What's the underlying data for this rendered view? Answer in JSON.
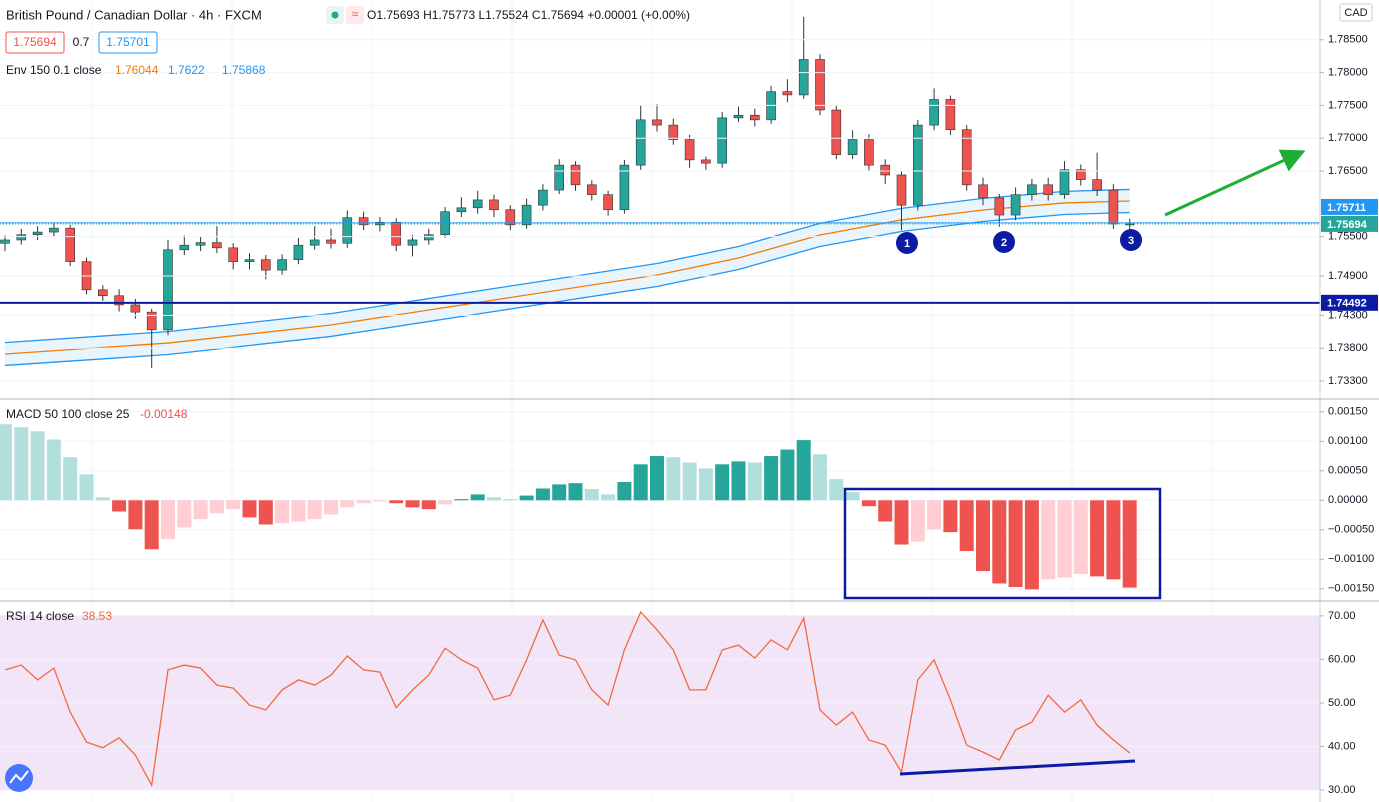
{
  "header": {
    "title": "British Pound / Canadian Dollar · 4h · FXCM",
    "ohlc_prefixes": [
      "O",
      "H",
      "L",
      "C"
    ],
    "change": "+0.00001 (+0.00%)",
    "spread": "0.7",
    "ask": 1.75701,
    "currency": "CAD"
  },
  "chart_data": [
    {
      "type": "candlestick",
      "open": [
        1.754,
        1.7545,
        1.7553,
        1.7557,
        1.7563,
        1.7512,
        1.7469,
        1.746,
        1.7446,
        1.7435,
        1.7408,
        1.753,
        1.7537,
        1.7541,
        1.7533,
        1.7512,
        1.7515,
        1.7499,
        1.7515,
        1.7537,
        1.7545,
        1.754,
        1.7579,
        1.7568,
        1.7572,
        1.7537,
        1.7545,
        1.7553,
        1.7588,
        1.7594,
        1.7606,
        1.7591,
        1.7568,
        1.7598,
        1.7621,
        1.7659,
        1.7629,
        1.7614,
        1.7591,
        1.7659,
        1.7728,
        1.772,
        1.7698,
        1.7667,
        1.7662,
        1.7731,
        1.7735,
        1.7728,
        1.7771,
        1.7766,
        1.782,
        1.7743,
        1.7675,
        1.7698,
        1.7659,
        1.7644,
        1.7598,
        1.772,
        1.7759,
        1.7713,
        1.7629,
        1.7609,
        1.7583,
        1.7614,
        1.7629,
        1.7614,
        1.7652,
        1.7637,
        1.7621,
        1.75693
      ],
      "high": [
        1.7552,
        1.7562,
        1.7566,
        1.7571,
        1.7568,
        1.7518,
        1.7476,
        1.747,
        1.7455,
        1.744,
        1.7545,
        1.7552,
        1.755,
        1.7566,
        1.754,
        1.7525,
        1.7522,
        1.7523,
        1.7548,
        1.7566,
        1.7562,
        1.759,
        1.7588,
        1.758,
        1.7578,
        1.7553,
        1.7562,
        1.7595,
        1.761,
        1.762,
        1.7614,
        1.7598,
        1.7608,
        1.763,
        1.7668,
        1.7665,
        1.7636,
        1.762,
        1.7667,
        1.775,
        1.7752,
        1.773,
        1.7705,
        1.7672,
        1.774,
        1.7748,
        1.7745,
        1.778,
        1.779,
        1.7885,
        1.7828,
        1.775,
        1.7712,
        1.7706,
        1.7668,
        1.765,
        1.7728,
        1.7776,
        1.7765,
        1.772,
        1.764,
        1.7615,
        1.7625,
        1.7638,
        1.764,
        1.7665,
        1.766,
        1.7678,
        1.763,
        1.75773
      ],
      "low": [
        1.7528,
        1.7538,
        1.7545,
        1.755,
        1.7505,
        1.7462,
        1.7452,
        1.7436,
        1.7425,
        1.735,
        1.74,
        1.7522,
        1.7528,
        1.7525,
        1.75,
        1.75,
        1.7485,
        1.7492,
        1.7508,
        1.753,
        1.7532,
        1.7533,
        1.756,
        1.7558,
        1.7528,
        1.752,
        1.7538,
        1.7548,
        1.758,
        1.7585,
        1.758,
        1.756,
        1.7562,
        1.759,
        1.7615,
        1.762,
        1.7605,
        1.7582,
        1.7585,
        1.7652,
        1.771,
        1.769,
        1.7655,
        1.7652,
        1.7655,
        1.7725,
        1.7718,
        1.7722,
        1.7755,
        1.776,
        1.7735,
        1.7668,
        1.7668,
        1.765,
        1.763,
        1.756,
        1.759,
        1.7712,
        1.7705,
        1.762,
        1.7598,
        1.7565,
        1.7575,
        1.7605,
        1.7605,
        1.7608,
        1.7628,
        1.7612,
        1.7562,
        1.75524
      ],
      "close": [
        1.7545,
        1.7553,
        1.7557,
        1.7563,
        1.7512,
        1.7469,
        1.746,
        1.7446,
        1.7435,
        1.7408,
        1.753,
        1.7537,
        1.7541,
        1.7533,
        1.7512,
        1.7515,
        1.7499,
        1.7515,
        1.7537,
        1.7545,
        1.754,
        1.7579,
        1.7568,
        1.7572,
        1.7537,
        1.7545,
        1.7553,
        1.7588,
        1.7594,
        1.7606,
        1.7591,
        1.7568,
        1.7598,
        1.7621,
        1.7659,
        1.7629,
        1.7614,
        1.7591,
        1.7659,
        1.7728,
        1.772,
        1.7698,
        1.7667,
        1.7662,
        1.7731,
        1.7735,
        1.7728,
        1.7771,
        1.7766,
        1.782,
        1.7743,
        1.7675,
        1.7698,
        1.7659,
        1.7644,
        1.7598,
        1.772,
        1.7759,
        1.7713,
        1.7629,
        1.7609,
        1.7583,
        1.7614,
        1.7629,
        1.7614,
        1.7652,
        1.7637,
        1.7621,
        1.75693,
        1.75694
      ],
      "colors": {
        "up": "#26a69a",
        "down": "#ef5350"
      },
      "ylim": [
        1.73042,
        1.79106
      ],
      "yticks": [
        {
          "value": 1.785,
          "label": "1.78500"
        },
        {
          "value": 1.78,
          "label": "1.78000"
        },
        {
          "value": 1.775,
          "label": "1.77500"
        },
        {
          "value": 1.77,
          "label": "1.77000"
        },
        {
          "value": 1.765,
          "label": "1.76500"
        },
        {
          "value": 1.755,
          "label": "1.75500"
        },
        {
          "value": 1.749,
          "label": "1.74900"
        },
        {
          "value": 1.743,
          "label": "1.74300"
        },
        {
          "value": 1.738,
          "label": "1.73800"
        },
        {
          "value": 1.733,
          "label": "1.73300"
        }
      ],
      "grid": true,
      "envelope": {
        "label": "Env 150 0.1 close",
        "x": [
          0,
          10,
          20,
          30,
          40,
          45,
          50,
          55,
          60,
          65,
          69
        ],
        "fill": "#e3f2fd",
        "lines": [
          {
            "color": "#f57c00",
            "values": [
              1.73712,
              1.73879,
              1.74154,
              1.74535,
              1.74916,
              1.75175,
              1.75526,
              1.75755,
              1.75907,
              1.76014,
              1.76044
            ]
          },
          {
            "color": "#2196f3",
            "values": [
              1.73886,
              1.74053,
              1.74328,
              1.7471,
              1.75091,
              1.7535,
              1.75702,
              1.75931,
              1.76083,
              1.7619,
              1.7622
            ]
          },
          {
            "color": "#2196f3",
            "values": [
              1.73538,
              1.73705,
              1.7398,
              1.7436,
              1.74741,
              1.75,
              1.7535,
              1.75579,
              1.75731,
              1.75838,
              1.75868
            ]
          }
        ]
      },
      "price_lines": [
        {
          "value": 1.74492,
          "color": "#0c1ba3"
        },
        {
          "value": 1.75711,
          "color": "#2196f3"
        }
      ],
      "last_price_color": "#26a69a",
      "markers": [
        "1",
        "2",
        "3"
      ]
    },
    {
      "type": "bar",
      "title": "MACD 50 100 close 25",
      "values": [
        0.00129,
        0.00124,
        0.00117,
        0.00103,
        0.00073,
        0.00044,
        5e-05,
        -0.00019,
        -0.00049,
        -0.00083,
        -0.00066,
        -0.00046,
        -0.00032,
        -0.00022,
        -0.00015,
        -0.00029,
        -0.00041,
        -0.00039,
        -0.00036,
        -0.00032,
        -0.00024,
        -0.00012,
        -5e-05,
        -2e-05,
        -5e-05,
        -0.00012,
        -0.00015,
        -7e-05,
        2e-05,
        0.0001,
        5e-05,
        2e-05,
        8e-05,
        0.0002,
        0.00027,
        0.00029,
        0.00019,
        0.0001,
        0.00031,
        0.00061,
        0.00075,
        0.00073,
        0.00064,
        0.00054,
        0.00061,
        0.00066,
        0.00064,
        0.00075,
        0.00086,
        0.00102,
        0.00078,
        0.00036,
        0.00014,
        -0.0001,
        -0.00036,
        -0.00075,
        -0.0007,
        -0.00049,
        -0.00054,
        -0.00086,
        -0.0012,
        -0.00141,
        -0.00147,
        -0.00151,
        -0.00134,
        -0.00131,
        -0.00125,
        -0.00129,
        -0.00134,
        -0.00148
      ],
      "colors": {
        "up_strong": "#26a69a",
        "up_weak": "#b2dfdb",
        "down_strong": "#ef5350",
        "down_weak": "#ffcdd2"
      },
      "ylim": [
        -0.00169,
        0.0017
      ],
      "yticks": [
        {
          "value": 0.0015,
          "label": "0.00150"
        },
        {
          "value": 0.001,
          "label": "0.00100"
        },
        {
          "value": 0.0005,
          "label": "0.00050"
        },
        {
          "value": 0,
          "label": "0.00000"
        },
        {
          "value": -0.0005,
          "label": "−0.00050"
        },
        {
          "value": -0.001,
          "label": "−0.00100"
        },
        {
          "value": -0.0015,
          "label": "−0.00150"
        }
      ],
      "grid": true
    },
    {
      "type": "line",
      "title": "RSI 14 close",
      "color": "#f26a3d",
      "values": [
        57.6,
        58.7,
        55.3,
        58.0,
        47.9,
        41.0,
        39.7,
        42.0,
        38.0,
        31.1,
        57.6,
        58.7,
        58.0,
        54.1,
        53.4,
        49.5,
        48.4,
        53.0,
        55.3,
        54.1,
        56.4,
        60.8,
        57.6,
        57.1,
        48.9,
        53.0,
        56.4,
        62.6,
        59.9,
        58.0,
        50.7,
        51.8,
        59.9,
        69.1,
        61.0,
        59.9,
        53.0,
        49.5,
        62.2,
        70.9,
        66.8,
        62.2,
        53.0,
        53.0,
        62.2,
        63.3,
        60.3,
        64.5,
        62.2,
        69.5,
        48.4,
        44.9,
        47.9,
        41.5,
        40.3,
        34.1,
        55.3,
        59.9,
        50.7,
        40.3,
        38.7,
        36.9,
        43.8,
        45.6,
        51.8,
        47.9,
        50.7,
        44.9,
        41.5,
        38.53
      ],
      "band": [
        30,
        70
      ],
      "band_color": "#f3e5f8",
      "ylim": [
        27.7,
        73.2
      ],
      "yticks": [
        {
          "value": 70,
          "label": "70.00"
        },
        {
          "value": 60,
          "label": "60.00"
        },
        {
          "value": 50,
          "label": "50.00"
        },
        {
          "value": 40,
          "label": "40.00"
        },
        {
          "value": 30,
          "label": "30.00"
        }
      ],
      "grid": true
    }
  ]
}
